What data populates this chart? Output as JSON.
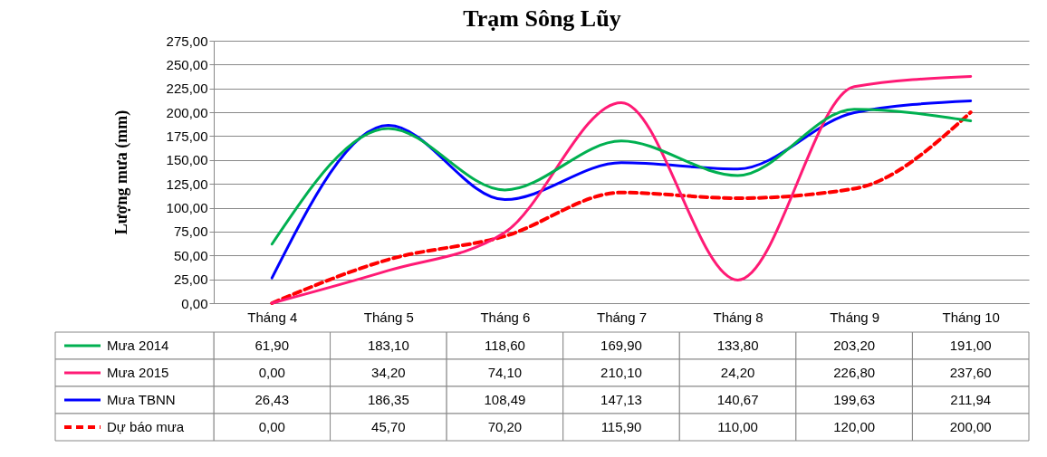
{
  "chart_data": {
    "type": "line",
    "title": "Trạm Sông Lũy",
    "ylabel": "Lượng mưa (mm)",
    "categories": [
      "Tháng 4",
      "Tháng 5",
      "Tháng 6",
      "Tháng 7",
      "Tháng 8",
      "Tháng 9",
      "Tháng 10"
    ],
    "ylim": [
      0,
      275
    ],
    "yticks": [
      {
        "value": 0,
        "label": "0,00"
      },
      {
        "value": 25,
        "label": "25,00"
      },
      {
        "value": 50,
        "label": "50,00"
      },
      {
        "value": 75,
        "label": "75,00"
      },
      {
        "value": 100,
        "label": "100,00"
      },
      {
        "value": 125,
        "label": "125,00"
      },
      {
        "value": 150,
        "label": "150,00"
      },
      {
        "value": 175,
        "label": "175,00"
      },
      {
        "value": 200,
        "label": "200,00"
      },
      {
        "value": 225,
        "label": "225,00"
      },
      {
        "value": 250,
        "label": "250,00"
      },
      {
        "value": 275,
        "label": "275,00"
      }
    ],
    "grid": "y",
    "legend": "bottom",
    "series": [
      {
        "name": "Mưa 2014",
        "color": "#00b050",
        "line_style": "solid",
        "values": [
          61.9,
          183.1,
          118.6,
          169.9,
          133.8,
          203.2,
          191.0
        ],
        "value_labels": [
          "61,90",
          "183,10",
          "118,60",
          "169,90",
          "133,80",
          "203,20",
          "191,00"
        ]
      },
      {
        "name": "Mưa 2015",
        "color": "#ff1a75",
        "line_style": "solid",
        "values": [
          0.0,
          34.2,
          74.1,
          210.1,
          24.2,
          226.8,
          237.6
        ],
        "value_labels": [
          "0,00",
          "34,20",
          "74,10",
          "210,10",
          "24,20",
          "226,80",
          "237,60"
        ]
      },
      {
        "name": "Mưa TBNN",
        "color": "#0000ff",
        "line_style": "solid",
        "values": [
          26.43,
          186.35,
          108.49,
          147.13,
          140.67,
          199.63,
          211.94
        ],
        "value_labels": [
          "26,43",
          "186,35",
          "108,49",
          "147,13",
          "140,67",
          "199,63",
          "211,94"
        ]
      },
      {
        "name": "Dự báo mưa",
        "color": "#ff0000",
        "line_style": "dashed",
        "values": [
          0.0,
          45.7,
          70.2,
          115.9,
          110.0,
          120.0,
          200.0
        ],
        "value_labels": [
          "0,00",
          "45,70",
          "70,20",
          "115,90",
          "110,00",
          "120,00",
          "200,00"
        ]
      }
    ]
  }
}
